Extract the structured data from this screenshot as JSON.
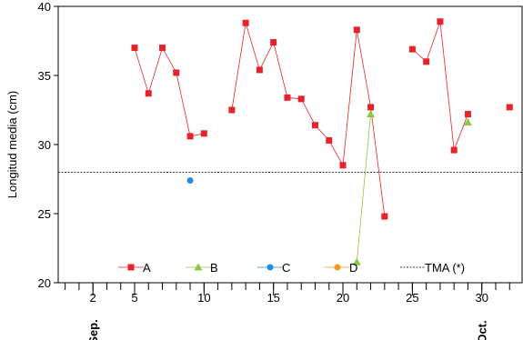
{
  "chart_data": {
    "type": "line",
    "ylabel": "Longitud media (cm)",
    "xlabel": "",
    "xlim": [
      -0.5,
      32.9
    ],
    "ylim": [
      20,
      40
    ],
    "yticks": [
      20,
      25,
      30,
      35,
      40
    ],
    "xticks_major": [
      2,
      5,
      10,
      15,
      20,
      25,
      30
    ],
    "month_labels": [
      {
        "x": 2,
        "text": "Sep."
      },
      {
        "x": 30,
        "text": "Oct."
      }
    ],
    "grid": false,
    "legend_position": "bottom",
    "series": [
      {
        "name": "A",
        "color": "#e8222a",
        "marker": "square",
        "segments": [
          [
            [
              5,
              37.0
            ],
            [
              6,
              33.7
            ],
            [
              7,
              37.0
            ],
            [
              8,
              35.2
            ],
            [
              9,
              30.6
            ],
            [
              10,
              30.8
            ]
          ],
          [
            [
              12,
              32.5
            ],
            [
              13,
              38.8
            ],
            [
              14,
              35.4
            ],
            [
              15,
              37.4
            ],
            [
              16,
              33.4
            ],
            [
              17,
              33.3
            ],
            [
              18,
              31.4
            ],
            [
              19,
              30.3
            ],
            [
              20,
              28.5
            ],
            [
              21,
              38.3
            ],
            [
              22,
              32.7
            ],
            [
              23,
              24.8
            ]
          ],
          [
            [
              25,
              36.9
            ],
            [
              26,
              36.0
            ],
            [
              27,
              38.9
            ],
            [
              28,
              29.6
            ],
            [
              29,
              32.2
            ]
          ],
          [
            [
              32,
              32.7
            ]
          ]
        ]
      },
      {
        "name": "B",
        "color": "#8dc63f",
        "marker": "triangle",
        "segments": [
          [
            [
              21,
              21.5
            ],
            [
              22,
              32.2
            ]
          ],
          [
            [
              29,
              31.6
            ]
          ]
        ]
      },
      {
        "name": "C",
        "color": "#1c8fe0",
        "marker": "circle",
        "segments": [
          [
            [
              9,
              27.4
            ]
          ]
        ]
      },
      {
        "name": "D",
        "color": "#f39a1e",
        "marker": "circle",
        "segments": []
      }
    ],
    "reference_line": {
      "name": "TMA (*)",
      "y": 28.0,
      "color": "#000000",
      "style": "dotted"
    }
  }
}
